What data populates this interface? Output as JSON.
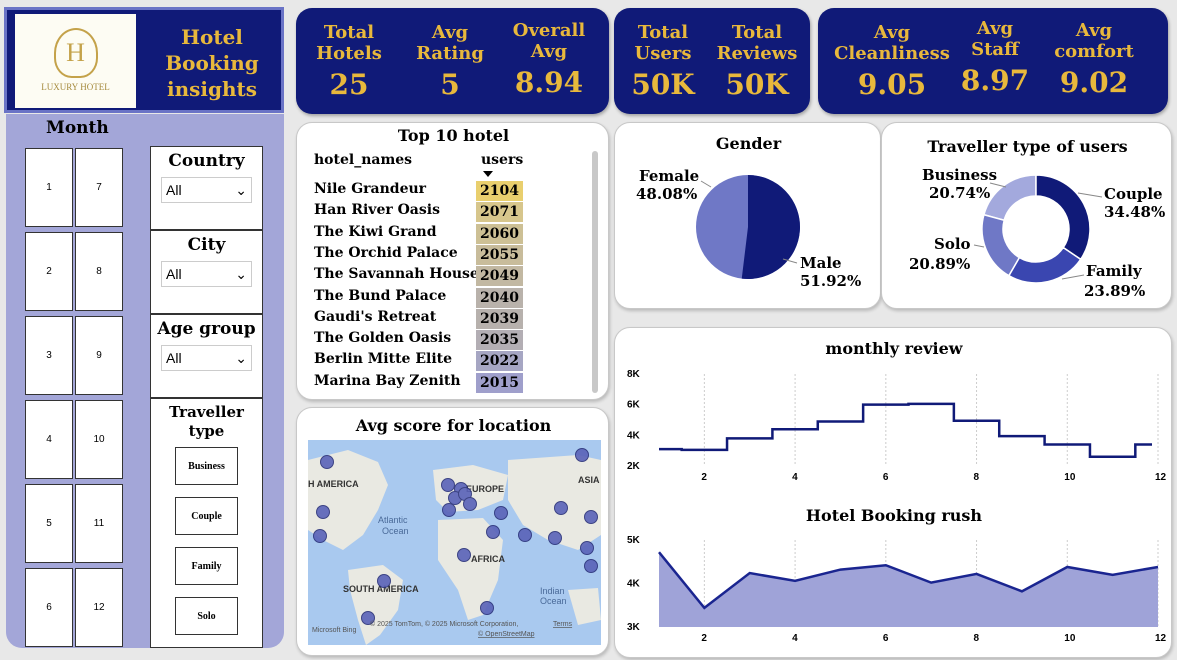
{
  "header": {
    "title_line1": "Hotel",
    "title_line2": "Booking",
    "title_line3": "insights",
    "logo_text": "LUXURY HOTEL",
    "logo_letter": "H"
  },
  "kpis": [
    {
      "label1": "Total",
      "label2": "Hotels",
      "value": "25"
    },
    {
      "label1": "Avg",
      "label2": "Rating",
      "value": "5"
    },
    {
      "label1": "Overall",
      "label2": "Avg",
      "value": "8.94"
    },
    {
      "label1": "Total",
      "label2": "Users",
      "value": "50K"
    },
    {
      "label1": "Total",
      "label2": "Reviews",
      "value": "50K"
    },
    {
      "label1": "Avg",
      "label2": "Cleanliness",
      "value": "9.05"
    },
    {
      "label1": "Avg",
      "label2": "Staff",
      "value": "8.97"
    },
    {
      "label1": "Avg",
      "label2": "comfort",
      "value": "9.02"
    }
  ],
  "month_panel": {
    "title": "Month",
    "months": [
      "1",
      "2",
      "3",
      "4",
      "5",
      "6",
      "7",
      "8",
      "9",
      "10",
      "11",
      "12"
    ]
  },
  "filters": {
    "country": {
      "label": "Country",
      "value": "All"
    },
    "city": {
      "label": "City",
      "value": "All"
    },
    "age_group": {
      "label": "Age group",
      "value": "All"
    },
    "traveller_type": {
      "label1": "Traveller",
      "label2": "type",
      "options": [
        "Business",
        "Couple",
        "Family",
        "Solo"
      ]
    }
  },
  "top_hotels": {
    "title": "Top 10 hotel",
    "col_name": "hotel_names",
    "col_users": "users",
    "rows": [
      {
        "name": "Nile Grandeur",
        "users": "2104",
        "color": "#e9cf6e"
      },
      {
        "name": "Han River Oasis",
        "users": "2071",
        "color": "#d7c68c"
      },
      {
        "name": "The Kiwi Grand",
        "users": "2060",
        "color": "#cdc095"
      },
      {
        "name": "The Orchid Palace",
        "users": "2055",
        "color": "#c8bc9b"
      },
      {
        "name": "The Savannah House",
        "users": "2049",
        "color": "#c2b8a2"
      },
      {
        "name": "The Bund Palace",
        "users": "2040",
        "color": "#b9b2ab"
      },
      {
        "name": "Gaudi's Retreat",
        "users": "2039",
        "color": "#b7b1ad"
      },
      {
        "name": "The Golden Oasis",
        "users": "2035",
        "color": "#b3aeb4"
      },
      {
        "name": "Berlin Mitte Elite",
        "users": "2022",
        "color": "#a6a6c3"
      },
      {
        "name": "Marina Bay Zenith",
        "users": "2015",
        "color": "#9f9fcb"
      }
    ]
  },
  "map": {
    "title": "Avg score for location",
    "labels": [
      "H AMERICA",
      "EUROPE",
      "ASIA",
      "Atlantic",
      "Ocean",
      "AFRICA",
      "SOUTH AMERICA",
      "Indian",
      "Ocean"
    ],
    "credit": "© 2025 TomTom, © 2025 Microsoft Corporation,",
    "terms": "Terms",
    "osm": "© OpenStreetMap",
    "bing": "Microsoft Bing"
  },
  "gender": {
    "title": "Gender",
    "female_label": "Female",
    "female_pct": "48.08%",
    "male_label": "Male",
    "male_pct": "51.92%",
    "female_color": "#6f78c6",
    "male_color": "#101a78"
  },
  "traveller": {
    "title": "Traveller type of users",
    "segments": [
      {
        "name": "Couple",
        "pct": "34.48%",
        "value": 34.48,
        "color": "#101a78"
      },
      {
        "name": "Family",
        "pct": "23.89%",
        "value": 23.89,
        "color": "#3a46b0"
      },
      {
        "name": "Solo",
        "pct": "20.89%",
        "value": 20.89,
        "color": "#6f78c6"
      },
      {
        "name": "Business",
        "pct": "20.74%",
        "value": 20.74,
        "color": "#a3a9dd"
      }
    ]
  },
  "chart_data": [
    {
      "type": "line",
      "title": "monthly review",
      "x": [
        1,
        2,
        3,
        4,
        5,
        6,
        7,
        8,
        9,
        10,
        11,
        12
      ],
      "values": [
        3100,
        3050,
        3800,
        4400,
        4900,
        6000,
        6050,
        4950,
        3950,
        3400,
        2600,
        3400
      ],
      "ylim": [
        2000,
        8000
      ],
      "yticks": [
        "2K",
        "4K",
        "6K",
        "8K"
      ],
      "xticks": [
        "2",
        "4",
        "6",
        "8",
        "10",
        "12"
      ]
    },
    {
      "type": "area",
      "title": "Hotel Booking rush",
      "x": [
        1,
        2,
        3,
        4,
        5,
        6,
        7,
        8,
        9,
        10,
        11,
        12
      ],
      "values": [
        4720,
        3440,
        4240,
        4060,
        4320,
        4420,
        4020,
        4220,
        3820,
        4380,
        4200,
        4380
      ],
      "ylim": [
        3000,
        5000
      ],
      "yticks": [
        "3K",
        "4K",
        "5K"
      ],
      "xticks": [
        "2",
        "4",
        "6",
        "8",
        "10",
        "12"
      ]
    }
  ]
}
